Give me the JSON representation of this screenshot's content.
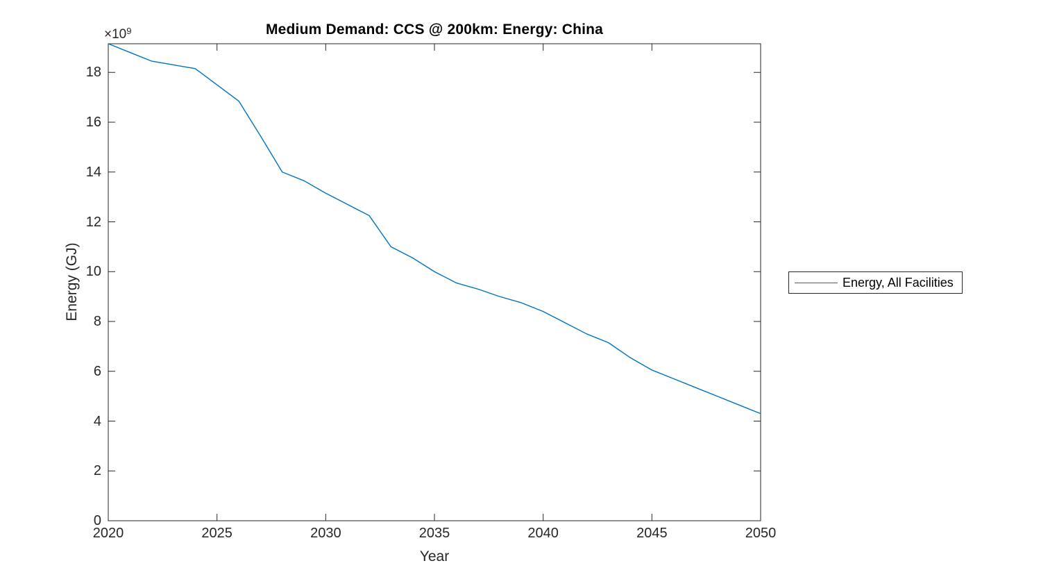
{
  "figure": {
    "background": "#ffffff"
  },
  "chart_data": {
    "type": "line",
    "title": "Medium Demand: CCS @ 200km: Energy: China",
    "xlabel": "Year",
    "ylabel": "Energy (GJ)",
    "y_axis_multiplier": {
      "base": "×10",
      "exponent": "9"
    },
    "values_unit": "1e9 GJ",
    "x": [
      2020,
      2021,
      2022,
      2023,
      2024,
      2025,
      2026,
      2027,
      2028,
      2029,
      2030,
      2031,
      2032,
      2033,
      2034,
      2035,
      2036,
      2037,
      2038,
      2039,
      2040,
      2041,
      2042,
      2043,
      2044,
      2045,
      2046,
      2047,
      2048,
      2049,
      2050
    ],
    "series": [
      {
        "name": "Energy, All Facilities",
        "color": "#0072BD",
        "values": [
          19.15,
          18.8,
          18.45,
          18.3,
          18.15,
          17.5,
          16.85,
          15.45,
          14.0,
          13.65,
          13.15,
          12.7,
          12.25,
          11.0,
          10.55,
          10.0,
          9.55,
          9.3,
          9.0,
          8.75,
          8.4,
          7.95,
          7.5,
          7.15,
          6.55,
          6.05,
          5.7,
          5.35,
          5.0,
          4.65,
          4.3
        ]
      }
    ],
    "xlim": [
      2020,
      2050
    ],
    "ylim": [
      0,
      19.15
    ],
    "x_ticks": [
      2020,
      2025,
      2030,
      2035,
      2040,
      2045,
      2050
    ],
    "y_ticks": [
      0,
      2,
      4,
      6,
      8,
      10,
      12,
      14,
      16,
      18
    ],
    "grid": false,
    "box": true,
    "tick_direction": "in",
    "legend_position": "right-outside"
  },
  "legend": {
    "label": "Energy, All Facilities"
  },
  "colors": {
    "line": "#0072BD",
    "axis": "#262626",
    "title": "#000000",
    "background": "#ffffff"
  }
}
